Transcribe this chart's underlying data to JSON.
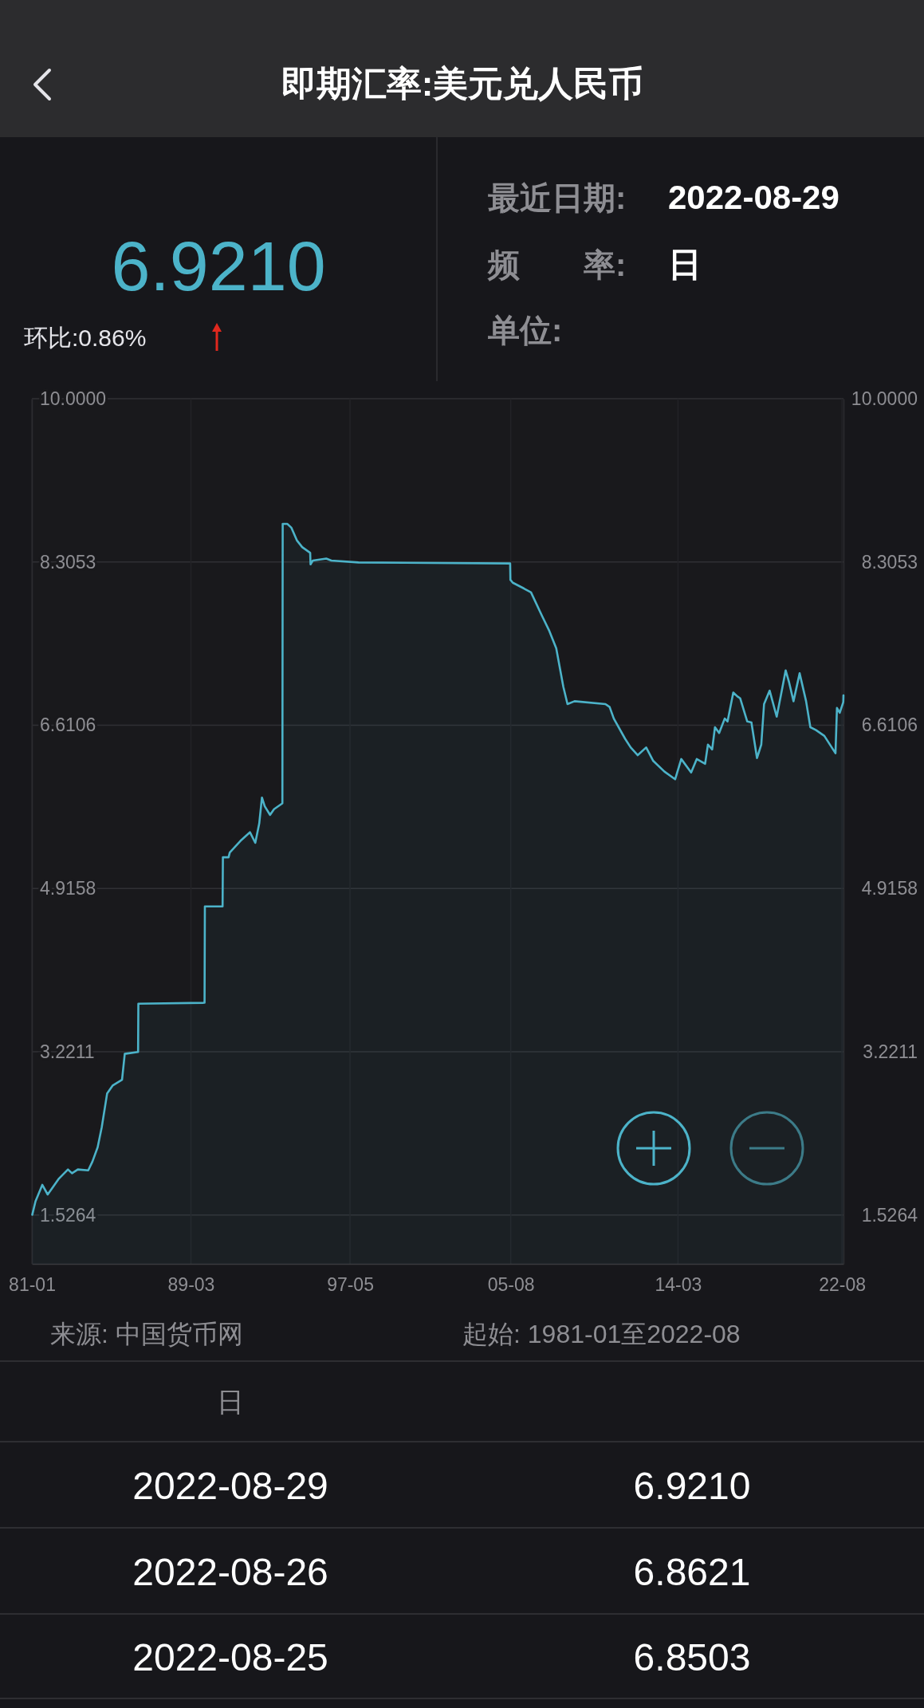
{
  "chart_data": {
    "type": "area",
    "title": "即期汇率:美元兑人民币",
    "color": "#4cb3c9",
    "x": [
      "1981-01-08",
      "1981-03-10",
      "1981-07-15",
      "1981-10-24",
      "1982-01-09",
      "1982-05-15",
      "1982-11-08",
      "1983-01-23",
      "1983-05-12",
      "1983-11-23",
      "1984-02-09",
      "1984-05-18",
      "1984-08-03",
      "1984-11-12",
      "1985-02-22",
      "1985-08-18",
      "1985-10-08",
      "1986-06-15",
      "1986-06-20",
      "1989-11-12",
      "1989-11-18",
      "1990-10-16",
      "1990-10-22",
      "1991-02-05",
      "1991-02-28",
      "1991-09-16",
      "1992-03-12",
      "1992-06-20",
      "1992-09-02",
      "1992-10-23",
      "1992-12-14",
      "1993-03-24",
      "1993-06-07",
      "1993-11-10",
      "1993-11-16",
      "1994-02-13",
      "1994-04-29",
      "1994-08-08",
      "1994-11-16",
      "1995-03-22",
      "1995-04-15",
      "1995-04-22",
      "1995-06-04",
      "1996-02-11",
      "1996-05-16",
      "1997-10-08",
      "2005-07-20",
      "2005-07-25",
      "2005-09-07",
      "2006-04-05",
      "2006-08-15",
      "2007-03-14",
      "2007-07-24",
      "2007-12-01",
      "2008-04-12",
      "2008-06-29",
      "2008-11-08",
      "2010-06-10",
      "2010-08-28",
      "2010-11-14",
      "2011-06-14",
      "2011-09-27",
      "2012-02-06",
      "2012-07-13",
      "2012-11-23",
      "2013-06-20",
      "2014-01-07",
      "2014-05-02",
      "2014-11-03",
      "2015-02-16",
      "2015-07-23",
      "2015-09-14",
      "2015-12-02",
      "2016-01-24",
      "2016-04-11",
      "2016-07-25",
      "2016-09-16",
      "2017-01-01",
      "2017-03-19",
      "2017-05-11",
      "2017-09-20",
      "2017-12-07",
      "2018-03-22",
      "2018-06-10",
      "2018-08-01",
      "2018-11-14",
      "2019-03-26",
      "2019-06-12",
      "2019-09-10",
      "2019-11-16",
      "2020-02-04",
      "2020-05-29",
      "2020-09-27",
      "2020-12-16",
      "2021-04-01",
      "2021-09-04",
      "2022-04-01",
      "2022-04-29",
      "2022-06-20",
      "2022-08-25",
      "2022-08-26",
      "2022-08-29"
    ],
    "values": [
      1.53,
      1.67,
      1.84,
      1.74,
      1.8,
      1.9,
      2.0,
      1.96,
      2.0,
      1.99,
      2.08,
      2.23,
      2.44,
      2.79,
      2.87,
      2.93,
      3.2,
      3.22,
      3.72,
      3.73,
      4.73,
      4.73,
      5.24,
      5.24,
      5.29,
      5.41,
      5.5,
      5.39,
      5.59,
      5.86,
      5.77,
      5.68,
      5.74,
      5.8,
      8.7,
      8.7,
      8.66,
      8.53,
      8.46,
      8.41,
      8.4,
      8.28,
      8.32,
      8.34,
      8.32,
      8.3,
      8.29,
      8.12,
      8.09,
      8.03,
      7.99,
      7.74,
      7.59,
      7.41,
      7.01,
      6.83,
      6.86,
      6.83,
      6.8,
      6.68,
      6.47,
      6.38,
      6.3,
      6.38,
      6.24,
      6.13,
      6.05,
      6.26,
      6.12,
      6.26,
      6.21,
      6.41,
      6.36,
      6.59,
      6.53,
      6.68,
      6.65,
      6.95,
      6.91,
      6.89,
      6.65,
      6.64,
      6.27,
      6.41,
      6.83,
      6.97,
      6.7,
      6.92,
      7.18,
      7.05,
      6.86,
      7.15,
      6.86,
      6.59,
      6.56,
      6.5,
      6.32,
      6.79,
      6.74,
      6.8503,
      6.8621,
      6.921
    ],
    "xlim": [
      "1981-01-01",
      "2022-08-29"
    ],
    "xticks": [
      {
        "value": "1981-01",
        "label": "81-01"
      },
      {
        "value": "1989-03",
        "label": "89-03"
      },
      {
        "value": "1997-05",
        "label": "97-05"
      },
      {
        "value": "2005-08",
        "label": "05-08"
      },
      {
        "value": "2014-03",
        "label": "14-03"
      },
      {
        "value": "2022-08",
        "label": "22-08"
      }
    ],
    "ylim": [
      1.02,
      10
    ],
    "yticks": [
      {
        "value": 10,
        "label": "10.0000"
      },
      8.3053,
      6.6106,
      4.9158,
      3.2211,
      1.5264
    ],
    "y2lim": [
      1.02,
      10
    ],
    "y2ticks": [
      {
        "value": 10,
        "label": "10.0000"
      },
      8.3053,
      6.6106,
      4.9158,
      3.2211,
      1.5264
    ],
    "grid": true,
    "annotations": [
      "6.9210",
      "环比:0.86%",
      "最近日期:",
      "2022-08-29",
      "频　　率:",
      "日",
      "单位:",
      "来源: 中国货币网",
      "起始: 1981-01至2022-08",
      "日",
      "2022-08-29",
      "6.9210",
      "2022-08-26",
      "6.8621",
      "2022-08-25",
      "6.8503"
    ]
  }
}
